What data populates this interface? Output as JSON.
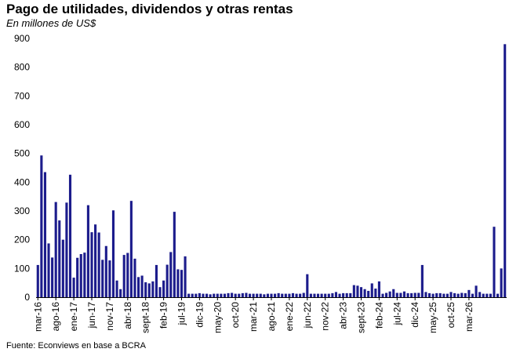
{
  "header": {
    "title": "Pago de utilidades, dividendos y otras rentas",
    "subtitle": "En millones de US$"
  },
  "footer": {
    "source": "Fuente: Econviews en base a BCRA"
  },
  "chart_data": {
    "type": "bar",
    "title": "Pago de utilidades, dividendos y otras rentas",
    "subtitle": "En millones de US$",
    "xlabel": "",
    "ylabel": "",
    "ylim": [
      0,
      900
    ],
    "yticks": [
      0,
      100,
      200,
      300,
      400,
      500,
      600,
      700,
      800,
      900
    ],
    "grid": false,
    "bar_color": "#1c1c8c",
    "x_tick_labels": [
      "mar-16",
      "ago-16",
      "ene-17",
      "jun-17",
      "nov-17",
      "abr-18",
      "sept-18",
      "feb-19",
      "jul-19",
      "dic-19",
      "may-20",
      "oct-20",
      "mar-21",
      "ago-21",
      "ene-22",
      "jun-22",
      "nov-22",
      "abr-23",
      "sept-23",
      "feb-24",
      "jul-24",
      "dic-24",
      "may-25",
      "oct-25",
      "mar-26"
    ],
    "series": [
      {
        "name": "Pago de utilidades, dividendos y otras rentas",
        "values": [
          112,
          493,
          435,
          187,
          138,
          331,
          267,
          200,
          329,
          426,
          68,
          137,
          150,
          155,
          320,
          226,
          253,
          225,
          130,
          178,
          128,
          302,
          58,
          28,
          147,
          154,
          335,
          134,
          70,
          75,
          52,
          48,
          55,
          112,
          35,
          58,
          113,
          157,
          297,
          97,
          95,
          142,
          12,
          12,
          12,
          14,
          12,
          12,
          10,
          12,
          12,
          12,
          12,
          14,
          15,
          12,
          12,
          14,
          15,
          12,
          12,
          12,
          12,
          10,
          12,
          12,
          12,
          14,
          12,
          12,
          12,
          14,
          12,
          12,
          15,
          80,
          12,
          12,
          12,
          12,
          12,
          12,
          14,
          18,
          12,
          14,
          14,
          14,
          42,
          40,
          35,
          28,
          22,
          48,
          30,
          55,
          12,
          15,
          20,
          28,
          15,
          15,
          20,
          14,
          14,
          15,
          15,
          112,
          18,
          14,
          12,
          14,
          14,
          12,
          12,
          18,
          14,
          12,
          15,
          14,
          25,
          12,
          40,
          18,
          12,
          12,
          12,
          245,
          12,
          100,
          880
        ]
      }
    ]
  }
}
